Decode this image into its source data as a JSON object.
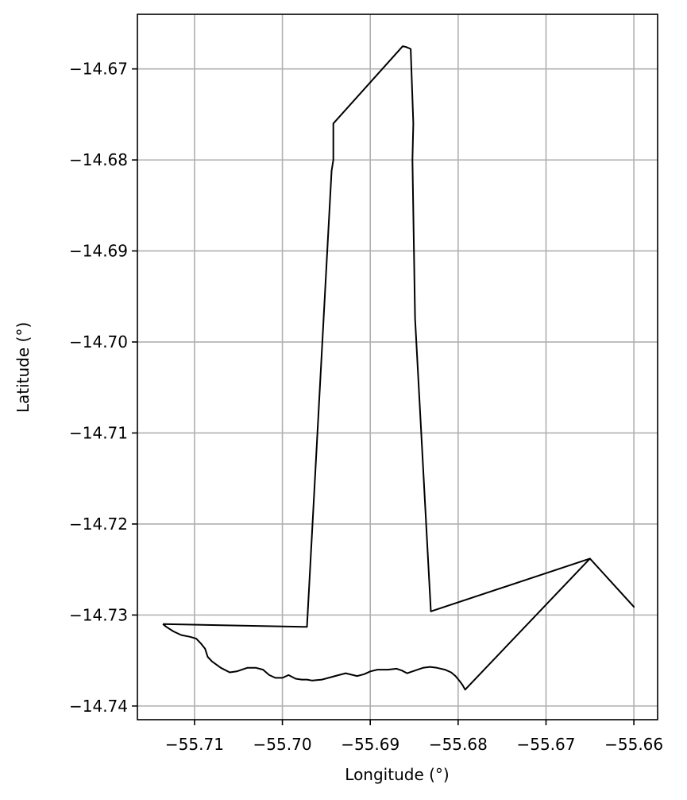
{
  "chart_data": {
    "type": "line",
    "title": "",
    "xlabel": "Longitude (°)",
    "ylabel": "Latitude (°)",
    "grid": true,
    "xlim": [
      -55.7165,
      -55.6573
    ],
    "ylim": [
      -14.7415,
      -14.664
    ],
    "xticks": [
      -55.71,
      -55.7,
      -55.69,
      -55.68,
      -55.67,
      -55.66
    ],
    "xtick_labels": [
      "−55.71",
      "−55.70",
      "−55.69",
      "−55.68",
      "−55.67",
      "−55.66"
    ],
    "yticks": [
      -14.67,
      -14.68,
      -14.69,
      -14.7,
      -14.71,
      -14.72,
      -14.73,
      -14.74
    ],
    "ytick_labels": [
      "−14.67",
      "−14.68",
      "−14.69",
      "−14.70",
      "−14.71",
      "−14.72",
      "−14.73",
      "−14.74"
    ],
    "series": [
      {
        "color": "#000000",
        "x": [
          -55.7136,
          -55.7132,
          -55.7124,
          -55.7115,
          -55.7105,
          -55.7098,
          -55.7093,
          -55.7088,
          -55.7085,
          -55.708,
          -55.707,
          -55.706,
          -55.7052,
          -55.704,
          -55.703,
          -55.7022,
          -55.7015,
          -55.7008,
          -55.7,
          -55.6993,
          -55.6985,
          -55.6978,
          -55.6972,
          -55.6966,
          -55.6955,
          -55.694,
          -55.6928,
          -55.6915,
          -55.6907,
          -55.69,
          -55.6892,
          -55.688,
          -55.687,
          -55.6864,
          -55.6858,
          -55.6852,
          -55.6846,
          -55.684,
          -55.6832,
          -55.6824,
          -55.6815,
          -55.6808,
          -55.6803,
          -55.6798,
          -55.6795,
          -55.6792,
          -55.665,
          -55.66,
          -55.665,
          -55.6831,
          -55.6849,
          -55.6852,
          -55.6851,
          -55.6854,
          -55.6859,
          -55.6863,
          -55.6942,
          -55.6942,
          -55.6944,
          -55.6972,
          -55.7136
        ],
        "y": [
          -14.731,
          -14.7313,
          -14.7318,
          -14.7322,
          -14.7324,
          -14.7326,
          -14.7331,
          -14.7337,
          -14.7346,
          -14.7351,
          -14.7358,
          -14.7363,
          -14.7362,
          -14.7358,
          -14.7358,
          -14.736,
          -14.7366,
          -14.7369,
          -14.7369,
          -14.7366,
          -14.737,
          -14.7371,
          -14.7371,
          -14.7372,
          -14.7371,
          -14.7367,
          -14.7364,
          -14.7367,
          -14.7365,
          -14.7362,
          -14.736,
          -14.736,
          -14.7359,
          -14.7361,
          -14.7364,
          -14.7362,
          -14.736,
          -14.7358,
          -14.7357,
          -14.7358,
          -14.736,
          -14.7363,
          -14.7367,
          -14.7373,
          -14.7377,
          -14.7382,
          -14.7238,
          -14.7291,
          -14.7238,
          -14.7296,
          -14.6974,
          -14.68,
          -14.676,
          -14.6678,
          -14.6676,
          -14.6675,
          -14.676,
          -14.68,
          -14.6812,
          -14.7313,
          -14.731
        ]
      }
    ]
  }
}
